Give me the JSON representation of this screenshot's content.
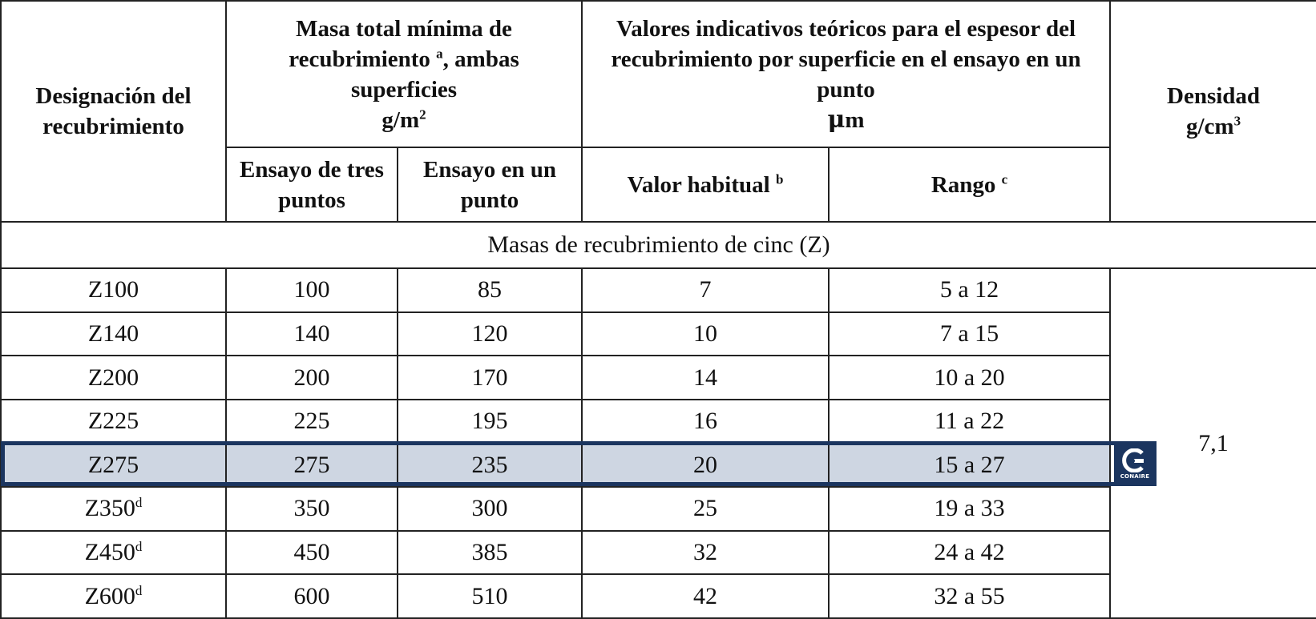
{
  "header": {
    "col_designation": "Designación del recubrimiento",
    "col_mass_line1": "Masa total mínima de",
    "col_mass_line2": "recubrimiento",
    "col_mass_sup": "a",
    "col_mass_line2b": ", ambas",
    "col_mass_line3": "superficies",
    "col_mass_unit": "g/m",
    "col_mass_unit_sup": "2",
    "col_thickness": "Valores indicativos teóricos para el espesor del recubrimiento por superficie en el ensayo en un punto",
    "col_thickness_unit_mu": "μ",
    "col_thickness_unit_m": "m",
    "col_density": "Densidad",
    "col_density_unit": "g/cm",
    "col_density_unit_sup": "3",
    "sub_three_point": "Ensayo de tres puntos",
    "sub_one_point": "Ensayo en un punto",
    "sub_usual_value": "Valor habitual",
    "sub_usual_value_sup": "b",
    "sub_range": "Rango",
    "sub_range_sup": "c"
  },
  "section_title": "Masas de recubrimiento de cinc (Z)",
  "density_value": "7,1",
  "rows": [
    {
      "designation": "Z100",
      "sup": "",
      "three_point": "100",
      "one_point": "85",
      "usual": "7",
      "range": "5 a 12"
    },
    {
      "designation": "Z140",
      "sup": "",
      "three_point": "140",
      "one_point": "120",
      "usual": "10",
      "range": "7 a 15"
    },
    {
      "designation": "Z200",
      "sup": "",
      "three_point": "200",
      "one_point": "170",
      "usual": "14",
      "range": "10 a 20"
    },
    {
      "designation": "Z225",
      "sup": "",
      "three_point": "225",
      "one_point": "195",
      "usual": "16",
      "range": "11 a 22"
    },
    {
      "designation": "Z275",
      "sup": "",
      "three_point": "275",
      "one_point": "235",
      "usual": "20",
      "range": "15 a 27"
    },
    {
      "designation": "Z350",
      "sup": "d",
      "three_point": "350",
      "one_point": "300",
      "usual": "25",
      "range": "19 a 33"
    },
    {
      "designation": "Z450",
      "sup": "d",
      "three_point": "450",
      "one_point": "385",
      "usual": "32",
      "range": "24 a 42"
    },
    {
      "designation": "Z600",
      "sup": "d",
      "three_point": "600",
      "one_point": "510",
      "usual": "42",
      "range": "32 a 55"
    }
  ],
  "highlighted_row": "Z275",
  "logo_text": "CONAIRE",
  "colors": {
    "highlight_fill": "#ced6e2",
    "highlight_border": "#1b355f",
    "logo_bg": "#1b355f"
  }
}
